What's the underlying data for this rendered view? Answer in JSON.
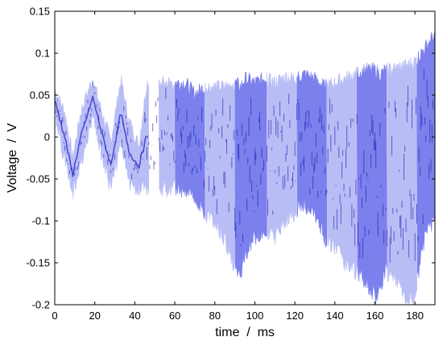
{
  "chart_data": {
    "type": "area",
    "title": "",
    "xlabel": "time  /  ms",
    "ylabel": "Voltage  /  V",
    "xlim": [
      0,
      190
    ],
    "ylim": [
      -0.2,
      0.15
    ],
    "xticks": [
      "0",
      "20",
      "40",
      "60",
      "80",
      "100",
      "120",
      "140",
      "160",
      "180"
    ],
    "yticks": [
      "0.15",
      "0.1",
      "0.05",
      "0",
      "-0.05",
      "-0.1",
      "-0.15",
      "-0.2"
    ],
    "grid": false,
    "legend": "none",
    "colors": {
      "light": "#b9bdf5",
      "medium": "#7b80ec",
      "dark": "#2f2fc8",
      "trace": "#1b1bb0"
    },
    "series": [
      {
        "description_free": true,
        "x": [
          0,
          5,
          9,
          13,
          19,
          24,
          28,
          33,
          37,
          42,
          46,
          50,
          55,
          60,
          65,
          70,
          75,
          80,
          85,
          90,
          93,
          95,
          100,
          105,
          110,
          115,
          120,
          125,
          130,
          135,
          140,
          145,
          150,
          155,
          160,
          163,
          165,
          170,
          175,
          180,
          183,
          186,
          189
        ],
        "upper": [
          0.057,
          0.03,
          -0.025,
          0.03,
          0.07,
          0.025,
          -0.005,
          0.068,
          0.02,
          -0.01,
          0.065,
          0.062,
          0.065,
          0.065,
          0.065,
          0.052,
          0.06,
          0.06,
          0.06,
          0.065,
          0.06,
          0.07,
          0.065,
          0.07,
          0.065,
          0.072,
          0.07,
          0.075,
          0.07,
          0.06,
          0.065,
          0.07,
          0.075,
          0.08,
          0.08,
          0.075,
          0.08,
          0.082,
          0.085,
          0.09,
          0.1,
          0.11,
          0.12
        ],
        "lower": [
          0.03,
          -0.03,
          -0.065,
          -0.03,
          0.025,
          -0.025,
          -0.062,
          -0.01,
          -0.055,
          -0.06,
          -0.06,
          -0.058,
          -0.062,
          -0.06,
          -0.065,
          -0.07,
          -0.09,
          -0.1,
          -0.12,
          -0.16,
          -0.17,
          -0.14,
          -0.12,
          -0.11,
          -0.12,
          -0.1,
          -0.09,
          -0.08,
          -0.09,
          -0.12,
          -0.13,
          -0.15,
          -0.16,
          -0.17,
          -0.19,
          -0.18,
          -0.16,
          -0.17,
          -0.19,
          -0.19,
          -0.14,
          -0.11,
          -0.1
        ]
      }
    ],
    "bands": [
      {
        "x0": 0,
        "x1": 47,
        "shade": "light"
      },
      {
        "x0": 52,
        "x1": 60,
        "shade": "light"
      },
      {
        "x0": 60,
        "x1": 75,
        "shade": "medium"
      },
      {
        "x0": 75,
        "x1": 90,
        "shade": "light"
      },
      {
        "x0": 90,
        "x1": 106,
        "shade": "medium"
      },
      {
        "x0": 106,
        "x1": 121,
        "shade": "light"
      },
      {
        "x0": 121,
        "x1": 136,
        "shade": "medium"
      },
      {
        "x0": 136,
        "x1": 151,
        "shade": "light"
      },
      {
        "x0": 151,
        "x1": 166,
        "shade": "medium"
      },
      {
        "x0": 166,
        "x1": 181,
        "shade": "light"
      },
      {
        "x0": 181,
        "x1": 190,
        "shade": "medium"
      }
    ]
  }
}
